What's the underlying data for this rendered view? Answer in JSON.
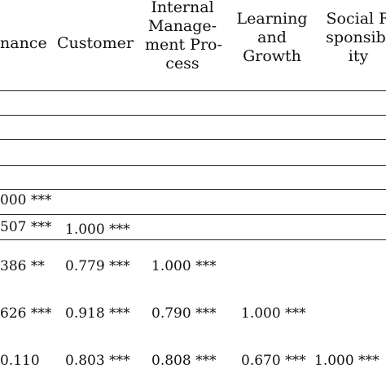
{
  "table": {
    "headers": {
      "col1": "nance",
      "col2": "Customer",
      "col3": [
        "Internal",
        "Manage-",
        "ment Pro-",
        "cess"
      ],
      "col4": [
        "Learning",
        "and",
        "Growth"
      ],
      "col5": [
        "Social R",
        "sponsibi",
        "ity"
      ]
    },
    "rows": [
      {
        "c1": "000 ***",
        "c2": "",
        "c3": "",
        "c4": "",
        "c5": ""
      },
      {
        "c1": "507 ***",
        "c2": "1.000 ***",
        "c3": "",
        "c4": "",
        "c5": ""
      },
      {
        "c1": "386 **",
        "c2": "0.779 ***",
        "c3": "1.000 ***",
        "c4": "",
        "c5": ""
      },
      {
        "c1": "626 ***",
        "c2": "0.918 ***",
        "c3": "0.790 ***",
        "c4": "1.000 ***",
        "c5": ""
      },
      {
        "c1": "0.110",
        "c2": "0.803 ***",
        "c3": "0.808 ***",
        "c4": "0.670 ***",
        "c5": "1.000 ***"
      }
    ]
  }
}
